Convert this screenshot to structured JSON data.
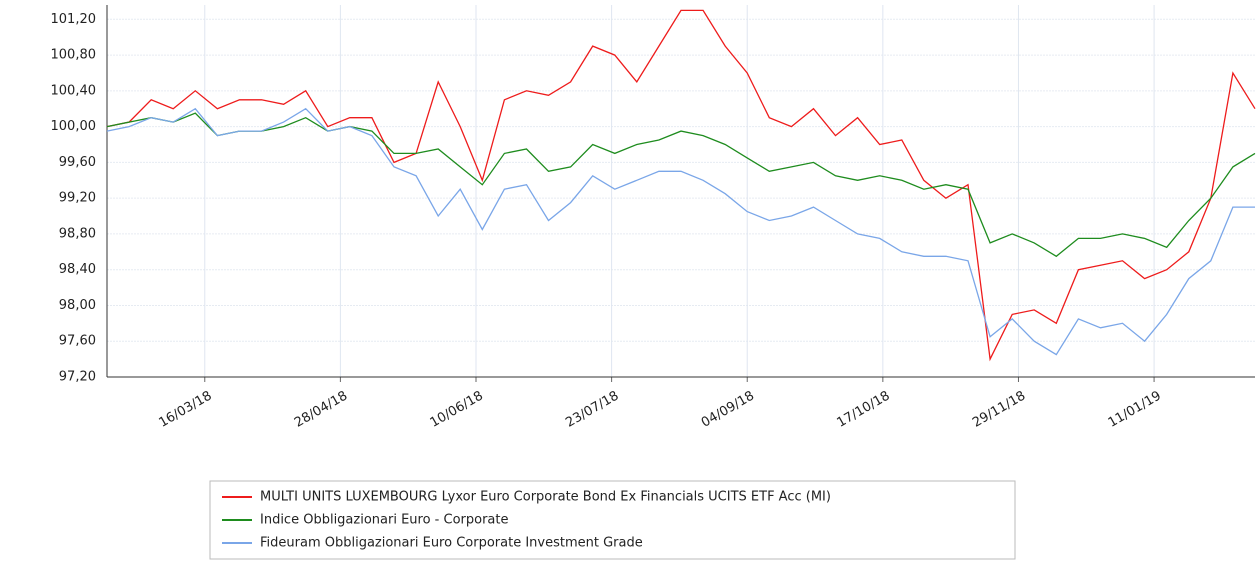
{
  "chart_data": {
    "type": "line",
    "x": [
      "13/02/18",
      "20/02/18",
      "27/02/18",
      "06/03/18",
      "13/03/18",
      "20/03/18",
      "27/03/18",
      "03/04/18",
      "10/04/18",
      "17/04/18",
      "24/04/18",
      "01/05/18",
      "08/05/18",
      "15/05/18",
      "22/05/18",
      "29/05/18",
      "05/06/18",
      "12/06/18",
      "19/06/18",
      "26/06/18",
      "03/07/18",
      "10/07/18",
      "17/07/18",
      "24/07/18",
      "31/07/18",
      "07/08/18",
      "14/08/18",
      "21/08/18",
      "28/08/18",
      "04/09/18",
      "11/09/18",
      "18/09/18",
      "25/09/18",
      "02/10/18",
      "09/10/18",
      "16/10/18",
      "23/10/18",
      "30/10/18",
      "06/11/18",
      "13/11/18",
      "20/11/18",
      "27/11/18",
      "04/12/18",
      "11/12/18",
      "18/12/18",
      "25/12/18",
      "01/01/19",
      "08/01/19",
      "15/01/19",
      "22/01/19",
      "29/01/19",
      "05/02/19",
      "12/02/19"
    ],
    "series": [
      {
        "name": "MULTI UNITS LUXEMBOURG Lyxor Euro Corporate Bond Ex Financials UCITS ETF Acc (MI)",
        "color": "#ee1c1c",
        "values": [
          100.0,
          100.05,
          100.3,
          100.2,
          100.4,
          100.2,
          100.3,
          100.3,
          100.25,
          100.4,
          100.0,
          100.1,
          100.1,
          99.6,
          99.7,
          100.5,
          100.0,
          99.4,
          100.3,
          100.4,
          100.35,
          100.5,
          100.9,
          100.8,
          100.5,
          100.9,
          101.3,
          101.3,
          100.9,
          100.6,
          100.1,
          100.0,
          100.2,
          99.9,
          100.1,
          99.8,
          99.85,
          99.4,
          99.2,
          99.35,
          97.4,
          97.9,
          97.95,
          97.8,
          98.4,
          98.45,
          98.5,
          98.3,
          98.4,
          98.6,
          99.2,
          100.6,
          100.2
        ]
      },
      {
        "name": "Indice Obbligazionari Euro - Corporate",
        "color": "#1e8c1e",
        "values": [
          100.0,
          100.05,
          100.1,
          100.05,
          100.15,
          99.9,
          99.95,
          99.95,
          100.0,
          100.1,
          99.95,
          100.0,
          99.95,
          99.7,
          99.7,
          99.75,
          99.55,
          99.35,
          99.7,
          99.75,
          99.5,
          99.55,
          99.8,
          99.7,
          99.8,
          99.85,
          99.95,
          99.9,
          99.8,
          99.65,
          99.5,
          99.55,
          99.6,
          99.45,
          99.4,
          99.45,
          99.4,
          99.3,
          99.35,
          99.3,
          98.7,
          98.8,
          98.7,
          98.55,
          98.75,
          98.75,
          98.8,
          98.75,
          98.65,
          98.95,
          99.2,
          99.55,
          99.7
        ]
      },
      {
        "name": "Fideuram Obbligazionari Euro Corporate Investment Grade",
        "color": "#7aa6e8",
        "values": [
          99.95,
          100.0,
          100.1,
          100.05,
          100.2,
          99.9,
          99.95,
          99.95,
          100.05,
          100.2,
          99.95,
          100.0,
          99.9,
          99.55,
          99.45,
          99.0,
          99.3,
          98.85,
          99.3,
          99.35,
          98.95,
          99.15,
          99.45,
          99.3,
          99.4,
          99.5,
          99.5,
          99.4,
          99.25,
          99.05,
          98.95,
          99.0,
          99.1,
          98.95,
          98.8,
          98.75,
          98.6,
          98.55,
          98.55,
          98.5,
          97.65,
          97.85,
          97.6,
          97.45,
          97.85,
          97.75,
          97.8,
          97.6,
          97.9,
          98.3,
          98.5,
          99.1,
          99.1
        ]
      }
    ],
    "xlim": [
      "13/02/18",
      "12/02/19"
    ],
    "xticks": [
      "16/03/18",
      "28/04/18",
      "10/06/18",
      "23/07/18",
      "04/09/18",
      "17/10/18",
      "29/11/18",
      "11/01/19"
    ],
    "ylim": [
      97.2,
      101.36
    ],
    "yticks": [
      {
        "value": 97.2,
        "label": "97,20"
      },
      {
        "value": 97.6,
        "label": "97,60"
      },
      {
        "value": 98.0,
        "label": "98,00"
      },
      {
        "value": 98.4,
        "label": "98,40"
      },
      {
        "value": 98.8,
        "label": "98,80"
      },
      {
        "value": 99.2,
        "label": "99,20"
      },
      {
        "value": 99.6,
        "label": "99,60"
      },
      {
        "value": 100.0,
        "label": "100,00"
      },
      {
        "value": 100.4,
        "label": "100,40"
      },
      {
        "value": 100.8,
        "label": "100,80"
      },
      {
        "value": 101.2,
        "label": "101,20"
      }
    ],
    "grid": true
  }
}
